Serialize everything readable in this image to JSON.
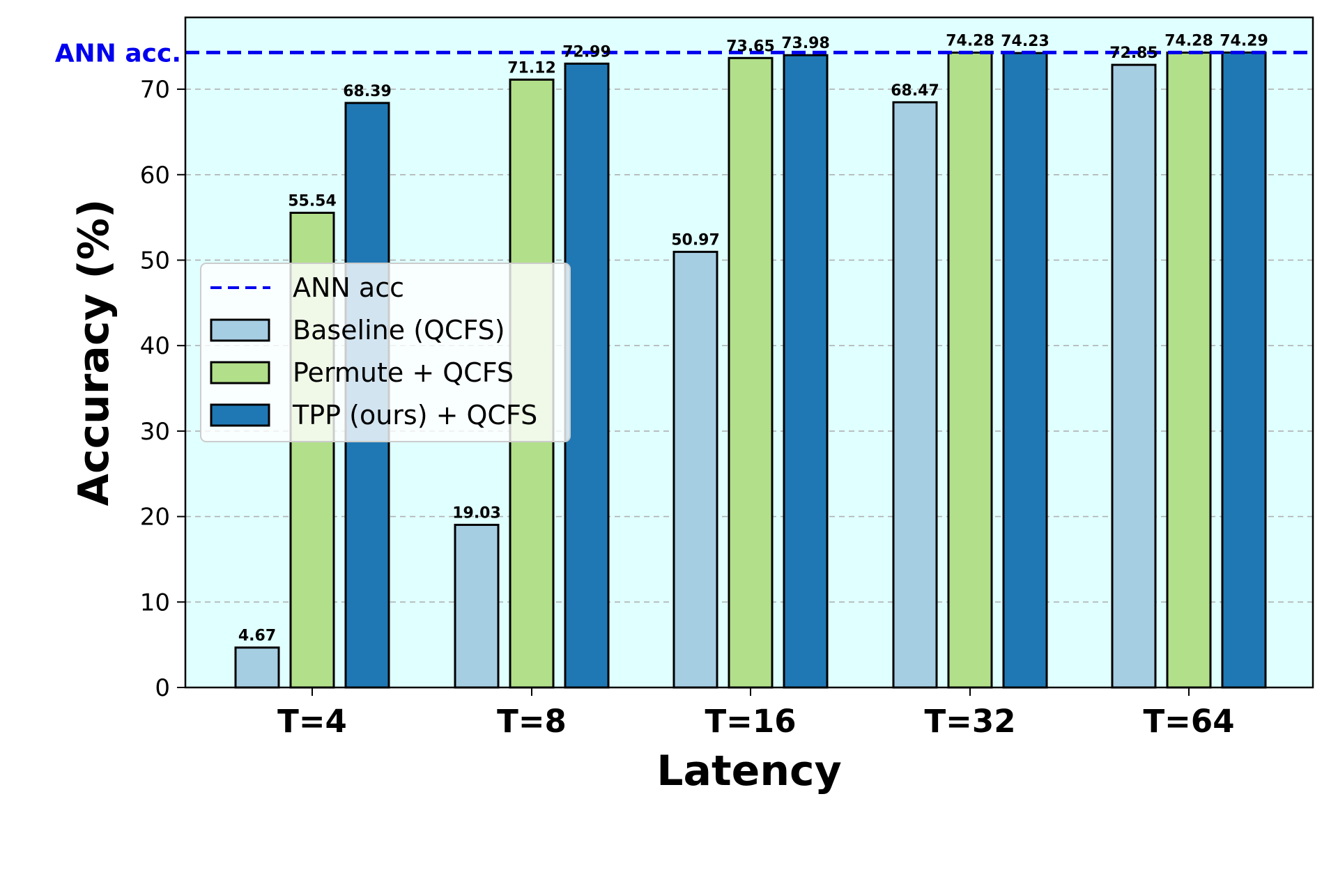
{
  "chart_data": {
    "type": "bar",
    "categories": [
      "T=4",
      "T=8",
      "T=16",
      "T=32",
      "T=64"
    ],
    "series": [
      {
        "name": "Baseline (QCFS)",
        "color": "#a6cee3",
        "values": [
          4.67,
          19.03,
          50.97,
          68.47,
          72.85
        ]
      },
      {
        "name": "Permute + QCFS",
        "color": "#b2df8a",
        "values": [
          55.54,
          71.12,
          73.65,
          74.28,
          74.28
        ]
      },
      {
        "name": "TPP (ours) + QCFS",
        "color": "#1f78b4",
        "values": [
          68.39,
          72.99,
          73.98,
          74.23,
          74.29
        ]
      }
    ],
    "reference_line": {
      "name": "ANN acc",
      "label": "ANN acc.",
      "value": 74.29,
      "color": "#0000ee",
      "style": "dashed"
    },
    "xlabel": "Latency",
    "ylabel": "Accuracy (%)",
    "ylim": [
      0,
      78.4
    ],
    "yticks": [
      0,
      10,
      20,
      30,
      40,
      50,
      60,
      70
    ],
    "grid": "horizontal dashed",
    "background_color": "#e0ffff",
    "legend_position": "center-left"
  }
}
